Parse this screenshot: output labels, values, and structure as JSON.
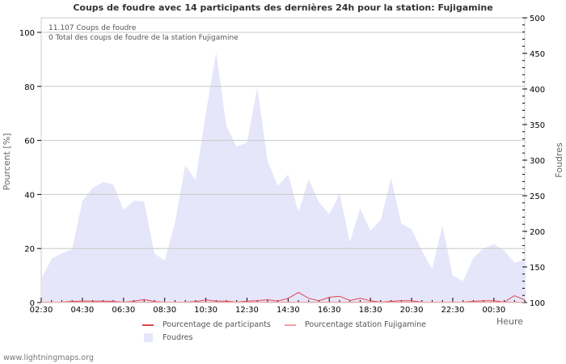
{
  "chart_data": {
    "type": "area+line",
    "title": "Coups de foudre avec 14 participants des dernières 24h pour la station: Fujigamine",
    "info_lines": [
      "11.107  Coups de foudre",
      "0 Total des coups de foudre de la station Fujigamine"
    ],
    "xlabel": "Heure",
    "ylabel_left": "Pourcent   [%]",
    "ylabel_right": "Foudres",
    "ylim_left": [
      0,
      100
    ],
    "ylim_right": [
      100,
      500
    ],
    "yticks_left": [
      0,
      20,
      40,
      60,
      80,
      100
    ],
    "yticks_right": [
      100,
      150,
      200,
      250,
      300,
      350,
      400,
      450,
      500
    ],
    "xtick_labels": [
      "02:30",
      "04:30",
      "06:30",
      "08:30",
      "10:30",
      "12:30",
      "14:30",
      "16:30",
      "18:30",
      "20:30",
      "22:30",
      "00:30"
    ],
    "x": [
      "02:30",
      "03:00",
      "03:30",
      "04:00",
      "04:30",
      "05:00",
      "05:30",
      "06:00",
      "06:30",
      "07:00",
      "07:30",
      "08:00",
      "08:30",
      "09:00",
      "09:30",
      "10:00",
      "10:30",
      "11:00",
      "11:30",
      "12:00",
      "12:30",
      "13:00",
      "13:30",
      "14:00",
      "14:30",
      "15:00",
      "15:30",
      "16:00",
      "16:30",
      "17:00",
      "17:30",
      "18:00",
      "18:30",
      "19:00",
      "19:30",
      "20:00",
      "20:30",
      "21:00",
      "21:30",
      "22:00",
      "22:30",
      "23:00",
      "23:30",
      "00:00",
      "00:30",
      "01:00",
      "01:30",
      "02:00"
    ],
    "series": [
      {
        "name": "Foudres",
        "axis": "right",
        "type": "area",
        "color": "#e6e6fa",
        "values": [
          133,
          161,
          169,
          175,
          243,
          261,
          269,
          266,
          230,
          243,
          242,
          169,
          159,
          212,
          293,
          272,
          366,
          451,
          348,
          319,
          325,
          402,
          299,
          264,
          280,
          227,
          273,
          241,
          224,
          253,
          185,
          232,
          201,
          216,
          275,
          211,
          203,
          173,
          147,
          208,
          138,
          130,
          163,
          176,
          182,
          173,
          156,
          160
        ]
      },
      {
        "name": "Pourcentage de participants",
        "axis": "left",
        "type": "line",
        "color": "#d9454f",
        "values": [
          0,
          0,
          0,
          0.3,
          0.4,
          0.4,
          0.4,
          0.3,
          0,
          0.3,
          1.0,
          0.2,
          0,
          0,
          0,
          0.2,
          0.8,
          0.4,
          0.4,
          0,
          0.4,
          0.5,
          0.9,
          0.4,
          1.4,
          3.6,
          1.4,
          0.5,
          1.8,
          2.2,
          0.6,
          1.4,
          0.5,
          0,
          0.3,
          0.5,
          0.5,
          0,
          0,
          0,
          0,
          0,
          0.3,
          0.5,
          0.5,
          0,
          2.4,
          0.8
        ]
      },
      {
        "name": "Pourcentage station Fujigamine",
        "axis": "left",
        "type": "line",
        "color": "#f4a0a0",
        "values": [
          0,
          0,
          0,
          0,
          0,
          0,
          0,
          0,
          0,
          0,
          0,
          0,
          0,
          0,
          0,
          0,
          0,
          0,
          0,
          0,
          0,
          0,
          0,
          0,
          0,
          0,
          0,
          0,
          0,
          0,
          0,
          0,
          0,
          0,
          0,
          0,
          0,
          0,
          0,
          0,
          0,
          0,
          0,
          0,
          0,
          0,
          0,
          0
        ]
      }
    ],
    "legend": [
      "Pourcentage de participants",
      "Pourcentage station Fujigamine",
      "Foudres"
    ],
    "grid": true
  },
  "legend": {
    "participants": "Pourcentage de participants",
    "station": "Pourcentage station Fujigamine",
    "foudres": "Foudres"
  },
  "footer": "www.lightningmaps.org"
}
